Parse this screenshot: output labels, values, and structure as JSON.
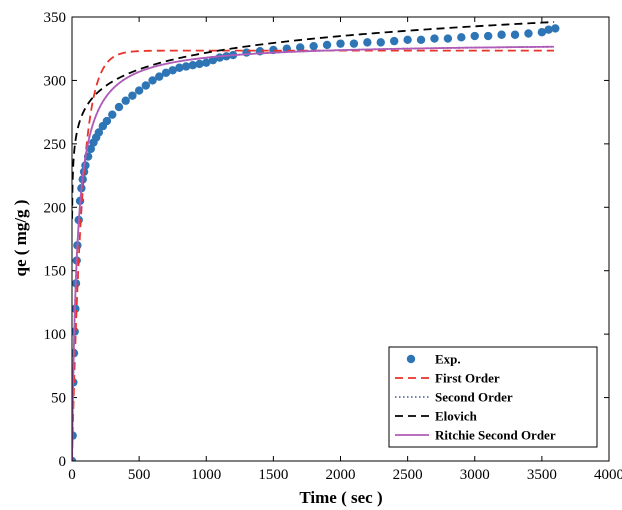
{
  "chart_data": {
    "type": "scatter",
    "title": "",
    "xlabel": "Time ( sec )",
    "ylabel": "qe ( mg/g )",
    "xlim": [
      0,
      4000
    ],
    "ylim": [
      0,
      350
    ],
    "xticks": [
      0,
      500,
      1000,
      1500,
      2000,
      2500,
      3000,
      3500,
      4000
    ],
    "yticks": [
      0,
      50,
      100,
      150,
      200,
      250,
      300,
      350
    ],
    "grid": false,
    "legend_position": "bottom-right",
    "series": [
      {
        "name": "Exp.",
        "kind": "markers",
        "color": "#2E75B6",
        "x": [
          0,
          5,
          10,
          15,
          20,
          25,
          30,
          35,
          40,
          50,
          60,
          70,
          80,
          90,
          100,
          120,
          140,
          160,
          180,
          200,
          230,
          260,
          300,
          350,
          400,
          450,
          500,
          550,
          600,
          650,
          700,
          750,
          800,
          850,
          900,
          950,
          1000,
          1050,
          1100,
          1150,
          1200,
          1300,
          1400,
          1500,
          1600,
          1700,
          1800,
          1900,
          2000,
          2100,
          2200,
          2300,
          2400,
          2500,
          2600,
          2700,
          2800,
          2900,
          3000,
          3100,
          3200,
          3300,
          3400,
          3500,
          3550,
          3600
        ],
        "y": [
          0,
          20,
          62,
          85,
          102,
          120,
          140,
          158,
          170,
          190,
          205,
          215,
          222,
          228,
          233,
          240,
          246,
          251,
          255,
          259,
          264,
          268,
          273,
          279,
          284,
          288,
          292,
          296,
          300,
          303,
          306,
          308,
          310,
          311,
          312,
          313,
          314,
          316,
          318,
          319,
          320,
          322,
          323,
          324,
          325,
          326,
          327,
          328,
          329,
          329,
          330,
          330,
          331,
          332,
          332,
          333,
          333,
          334,
          335,
          335,
          336,
          336,
          337,
          338,
          340,
          341
        ]
      },
      {
        "name": "First Order",
        "kind": "line",
        "style": "dashed",
        "color": "#E8332A",
        "model": "first_order",
        "params": {
          "qe": 323.5,
          "k": 0.0135
        }
      },
      {
        "name": "Second Order",
        "kind": "line",
        "style": "dotted",
        "color": "#5B6FA8",
        "model": "second_order",
        "params": {
          "qe": 330,
          "k": 8e-05
        }
      },
      {
        "name": "Elovich",
        "kind": "line",
        "style": "dashed",
        "color": "#000000",
        "model": "elovich",
        "params": {
          "a": 191.0,
          "b": 18.94
        }
      },
      {
        "name": "Ritchie Second Order",
        "kind": "line",
        "style": "solid",
        "color": "#B05BB8",
        "model": "second_order",
        "params": {
          "qe": 330,
          "k": 8e-05
        }
      }
    ]
  }
}
